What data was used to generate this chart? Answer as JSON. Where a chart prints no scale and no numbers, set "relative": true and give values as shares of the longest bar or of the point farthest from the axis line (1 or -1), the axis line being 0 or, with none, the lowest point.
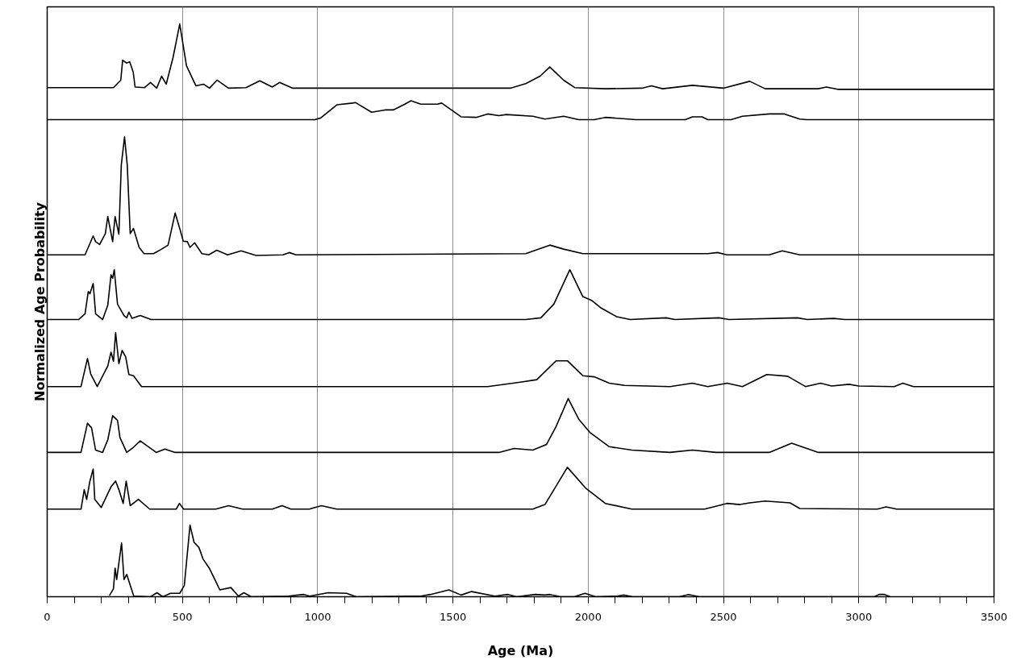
{
  "chart_data": {
    "type": "line",
    "relative": true,
    "xlabel": "Age (Ma)",
    "ylabel": "Normalized Age Probability",
    "xlim": [
      0,
      3500
    ],
    "xticks": [
      0,
      {
        "value": 100,
        "label": null
      },
      {
        "value": 200,
        "label": null
      },
      {
        "value": 300,
        "label": null
      },
      {
        "value": 400,
        "label": null
      },
      500,
      {
        "value": 600,
        "label": null
      },
      {
        "value": 700,
        "label": null
      },
      {
        "value": 800,
        "label": null
      },
      {
        "value": 900,
        "label": null
      },
      1000,
      {
        "value": 1100,
        "label": null
      },
      {
        "value": 1200,
        "label": null
      },
      {
        "value": 1300,
        "label": null
      },
      {
        "value": 1400,
        "label": null
      },
      1500,
      {
        "value": 1600,
        "label": null
      },
      {
        "value": 1700,
        "label": null
      },
      {
        "value": 1800,
        "label": null
      },
      {
        "value": 1900,
        "label": null
      },
      2000,
      {
        "value": 2100,
        "label": null
      },
      {
        "value": 2200,
        "label": null
      },
      {
        "value": 2300,
        "label": null
      },
      {
        "value": 2400,
        "label": null
      },
      2500,
      {
        "value": 2600,
        "label": null
      },
      {
        "value": 2700,
        "label": null
      },
      {
        "value": 2800,
        "label": null
      },
      {
        "value": 2900,
        "label": null
      },
      3000,
      {
        "value": 3100,
        "label": null
      },
      {
        "value": 3200,
        "label": null
      },
      {
        "value": 3300,
        "label": null
      },
      {
        "value": 3400,
        "label": null
      },
      3500
    ],
    "grid": "x",
    "line_style": "solid",
    "series": [
      {
        "color": "#000000",
        "x": [
          0,
          245,
          272,
          279,
          293,
          305,
          318,
          325,
          360,
          382,
          405,
          423,
          440,
          465,
          490,
          515,
          550,
          578,
          600,
          628,
          670,
          735,
          786,
          832,
          859,
          908,
          1712,
          1769,
          1822,
          1858,
          1909,
          1950,
          2064,
          2198,
          2234,
          2275,
          2385,
          2499,
          2597,
          2654,
          2851,
          2880,
          2922,
          3500
        ],
        "values": [
          0.889,
          0.889,
          0.902,
          0.937,
          0.932,
          0.934,
          0.916,
          0.89,
          0.889,
          0.898,
          0.888,
          0.909,
          0.895,
          0.941,
          1.0,
          0.927,
          0.892,
          0.895,
          0.888,
          0.902,
          0.888,
          0.889,
          0.901,
          0.89,
          0.898,
          0.888,
          0.888,
          0.896,
          0.909,
          0.925,
          0.902,
          0.889,
          0.887,
          0.888,
          0.892,
          0.887,
          0.893,
          0.888,
          0.9,
          0.887,
          0.887,
          0.89,
          0.886,
          0.886
        ]
      },
      {
        "color": "#000000",
        "x": [
          0,
          990,
          1011,
          1071,
          1130,
          1139,
          1199,
          1249,
          1279,
          1318,
          1345,
          1381,
          1443,
          1458,
          1530,
          1586,
          1628,
          1670,
          1697,
          1795,
          1840,
          1909,
          1965,
          2022,
          2063,
          2177,
          2359,
          2385,
          2421,
          2442,
          2528,
          2570,
          2669,
          2725,
          2782,
          2809,
          3500
        ],
        "values": [
          0.833,
          0.833,
          0.836,
          0.859,
          0.862,
          0.863,
          0.846,
          0.85,
          0.85,
          0.859,
          0.866,
          0.86,
          0.86,
          0.862,
          0.838,
          0.837,
          0.843,
          0.84,
          0.842,
          0.839,
          0.834,
          0.839,
          0.833,
          0.833,
          0.837,
          0.833,
          0.833,
          0.838,
          0.838,
          0.833,
          0.833,
          0.839,
          0.843,
          0.843,
          0.834,
          0.833,
          0.833
        ]
      },
      {
        "color": "#000000",
        "x": [
          0,
          140,
          170,
          179,
          194,
          215,
          224,
          242,
          251,
          265,
          274,
          286,
          296,
          307,
          319,
          340,
          358,
          393,
          423,
          447,
          473,
          493,
          503,
          518,
          528,
          545,
          572,
          597,
          627,
          667,
          717,
          772,
          871,
          895,
          920,
          1769,
          1858,
          1909,
          1980,
          2442,
          2478,
          2513,
          2669,
          2717,
          2782,
          3500
        ],
        "values": [
          0.597,
          0.597,
          0.63,
          0.62,
          0.615,
          0.634,
          0.664,
          0.62,
          0.664,
          0.633,
          0.754,
          0.803,
          0.754,
          0.634,
          0.643,
          0.61,
          0.599,
          0.599,
          0.607,
          0.614,
          0.67,
          0.638,
          0.621,
          0.62,
          0.61,
          0.618,
          0.599,
          0.597,
          0.605,
          0.597,
          0.604,
          0.596,
          0.597,
          0.601,
          0.597,
          0.599,
          0.614,
          0.607,
          0.599,
          0.599,
          0.601,
          0.597,
          0.597,
          0.604,
          0.597,
          0.597
        ]
      },
      {
        "color": "#000000",
        "x": [
          0,
          116,
          140,
          152,
          158,
          170,
          179,
          205,
          224,
          236,
          242,
          248,
          260,
          284,
          294,
          302,
          314,
          344,
          384,
          1769,
          1825,
          1873,
          1932,
          1980,
          2014,
          2048,
          2105,
          2155,
          2288,
          2320,
          2484,
          2520,
          2773,
          2810,
          2907,
          2949,
          3500
        ],
        "values": [
          0.484,
          0.484,
          0.494,
          0.533,
          0.529,
          0.547,
          0.494,
          0.484,
          0.509,
          0.562,
          0.556,
          0.571,
          0.511,
          0.491,
          0.487,
          0.497,
          0.486,
          0.491,
          0.484,
          0.484,
          0.487,
          0.511,
          0.571,
          0.524,
          0.517,
          0.504,
          0.489,
          0.484,
          0.487,
          0.484,
          0.487,
          0.484,
          0.487,
          0.484,
          0.486,
          0.484,
          0.484
        ]
      },
      {
        "color": "#000000",
        "x": [
          0,
          125,
          149,
          161,
          185,
          224,
          236,
          245,
          253,
          265,
          277,
          290,
          302,
          319,
          349,
          1628,
          1754,
          1810,
          1881,
          1923,
          1980,
          2022,
          2078,
          2134,
          2302,
          2385,
          2442,
          2513,
          2570,
          2660,
          2737,
          2803,
          2859,
          2900,
          2964,
          3000,
          3131,
          3163,
          3202,
          3500
        ],
        "values": [
          0.367,
          0.367,
          0.416,
          0.389,
          0.367,
          0.403,
          0.427,
          0.411,
          0.461,
          0.407,
          0.43,
          0.419,
          0.388,
          0.386,
          0.367,
          0.367,
          0.375,
          0.379,
          0.412,
          0.412,
          0.386,
          0.384,
          0.373,
          0.369,
          0.367,
          0.373,
          0.367,
          0.373,
          0.367,
          0.388,
          0.385,
          0.367,
          0.373,
          0.368,
          0.371,
          0.368,
          0.367,
          0.373,
          0.367,
          0.367
        ]
      },
      {
        "color": "#000000",
        "x": [
          0,
          125,
          149,
          164,
          179,
          205,
          224,
          242,
          260,
          269,
          294,
          319,
          344,
          403,
          435,
          473,
          1670,
          1726,
          1795,
          1846,
          1881,
          1926,
          1965,
          2006,
          2078,
          2161,
          2302,
          2385,
          2472,
          2669,
          2752,
          2851,
          3500
        ],
        "values": [
          0.252,
          0.252,
          0.303,
          0.295,
          0.256,
          0.252,
          0.274,
          0.316,
          0.308,
          0.278,
          0.252,
          0.261,
          0.272,
          0.252,
          0.258,
          0.252,
          0.252,
          0.259,
          0.256,
          0.266,
          0.297,
          0.346,
          0.31,
          0.287,
          0.262,
          0.256,
          0.252,
          0.256,
          0.252,
          0.252,
          0.268,
          0.252,
          0.252
        ]
      },
      {
        "color": "#000000",
        "x": [
          0,
          125,
          137,
          146,
          158,
          170,
          176,
          200,
          236,
          253,
          265,
          281,
          292,
          307,
          337,
          379,
          477,
          489,
          504,
          623,
          671,
          722,
          832,
          868,
          901,
          969,
          1014,
          1070,
          1795,
          1840,
          1923,
          1992,
          2063,
          2161,
          2430,
          2513,
          2561,
          2597,
          2654,
          2746,
          2782,
          3069,
          3101,
          3140,
          3500
        ],
        "values": [
          0.153,
          0.153,
          0.187,
          0.17,
          0.202,
          0.223,
          0.17,
          0.156,
          0.192,
          0.202,
          0.187,
          0.163,
          0.202,
          0.159,
          0.17,
          0.153,
          0.153,
          0.163,
          0.153,
          0.153,
          0.159,
          0.153,
          0.153,
          0.159,
          0.153,
          0.153,
          0.159,
          0.153,
          0.153,
          0.161,
          0.226,
          0.189,
          0.163,
          0.153,
          0.153,
          0.163,
          0.161,
          0.164,
          0.167,
          0.164,
          0.154,
          0.153,
          0.157,
          0.153,
          0.153
        ]
      },
      {
        "color": "#000000",
        "x": [
          230,
          245,
          251,
          257,
          275,
          284,
          294,
          320,
          382,
          406,
          427,
          456,
          490,
          507,
          528,
          543,
          561,
          576,
          599,
          617,
          638,
          679,
          707,
          727,
          754,
          891,
          948,
          970,
          1039,
          1107,
          1142,
          1381,
          1417,
          1485,
          1530,
          1569,
          1655,
          1703,
          1736,
          1805,
          1840,
          1858,
          1897,
          1948,
          1988,
          2028,
          2108,
          2131,
          2165,
          2337,
          2371,
          2410,
          3057,
          3075,
          3095,
          3116
        ],
        "values": [
          0.002,
          0.014,
          0.05,
          0.03,
          0.094,
          0.03,
          0.039,
          0.001,
          0.0,
          0.007,
          0.0,
          0.006,
          0.006,
          0.02,
          0.125,
          0.095,
          0.086,
          0.066,
          0.05,
          0.033,
          0.012,
          0.016,
          0.001,
          0.007,
          0.0,
          0.001,
          0.004,
          0.001,
          0.007,
          0.006,
          0.0,
          0.001,
          0.004,
          0.012,
          0.003,
          0.009,
          0.001,
          0.004,
          0.0,
          0.004,
          0.003,
          0.004,
          0.0,
          0.0,
          0.006,
          0.0,
          0.001,
          0.003,
          0.0,
          0.0,
          0.004,
          0.0,
          0.0,
          0.004,
          0.004,
          0.0
        ]
      }
    ]
  }
}
